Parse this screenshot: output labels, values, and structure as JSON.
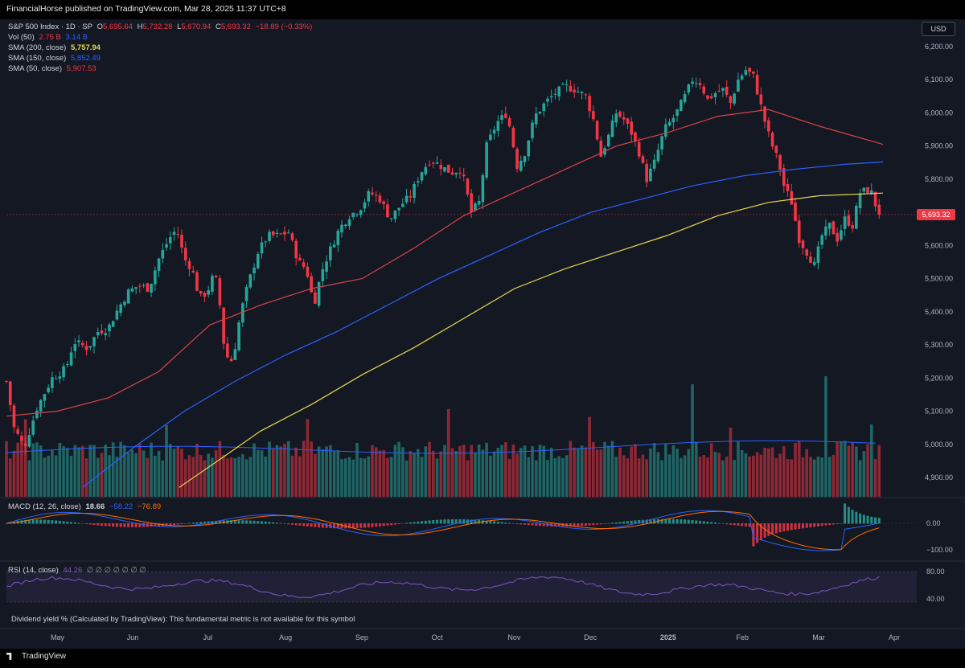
{
  "header": {
    "published": "FinancialHorse published on TradingView.com, Mar 28, 2025 11:37 UTC+8"
  },
  "legend": {
    "symbol": "S&P 500 Index · 1D · SP",
    "o_label": "O",
    "o": "5,695.64",
    "h_label": "H",
    "h": "5,732.28",
    "l_label": "L",
    "l": "5,670.94",
    "c_label": "C",
    "c": "5,693.32",
    "change": "−18.89 (−0.33%)",
    "vol_label": "Vol (50)",
    "vol_a": "2.75 B",
    "vol_b": "3.14 B",
    "sma200_label": "SMA (200, close)",
    "sma200": "5,757.94",
    "sma150_label": "SMA (150, close)",
    "sma150": "5,852.49",
    "sma50_label": "SMA (50, close)",
    "sma50": "5,907.53"
  },
  "currency": "USD",
  "last_price": "5,693.32",
  "macd": {
    "label": "MACD (12, 26, close)",
    "v1": "18.66",
    "v2": "−58.22",
    "v3": "−76.89"
  },
  "rsi": {
    "label": "RSI (14, close)",
    "v": "44.26",
    "extra": "∅ ∅ ∅ ∅ ∅ ∅ ∅"
  },
  "dividend_note": "Dividend yield % (Calculated by TradingView): This fundamental metric is not available for this symbol",
  "footer": {
    "brand": "TradingView"
  },
  "colors": {
    "up": "#26a69a",
    "down": "#f23645",
    "sma200": "#e6d84a",
    "sma150": "#2962ff",
    "sma50": "#d9434b",
    "macd": "#2962ff",
    "signal": "#ff6d00",
    "rsi": "#7e57c2"
  },
  "chart_data": {
    "type": "candlestick",
    "x_ticks": [
      "May",
      "Jun",
      "Jul",
      "Aug",
      "Sep",
      "Oct",
      "Nov",
      "Dec",
      "2025",
      "Feb",
      "Mar",
      "Apr"
    ],
    "y_ticks": [
      "6,200.00",
      "6,100.00",
      "6,000.00",
      "5,900.00",
      "5,800.00",
      "5,700.00",
      "5,600.00",
      "5,500.00",
      "5,400.00",
      "5,300.00",
      "5,200.00",
      "5,100.00",
      "5,000.00",
      "4,900.00"
    ],
    "ylim": [
      4870,
      6260
    ],
    "macd_ticks": [
      "0.00",
      "−100.00"
    ],
    "rsi_ticks": [
      "80.00",
      "40.00"
    ],
    "close_path": [
      [
        0,
        5190
      ],
      [
        6,
        5050
      ],
      [
        14,
        4990
      ],
      [
        24,
        5110
      ],
      [
        36,
        5200
      ],
      [
        47,
        5230
      ],
      [
        53,
        5310
      ],
      [
        64,
        5290
      ],
      [
        72,
        5340
      ],
      [
        80,
        5350
      ],
      [
        88,
        5410
      ],
      [
        96,
        5460
      ],
      [
        104,
        5480
      ],
      [
        112,
        5470
      ],
      [
        120,
        5560
      ],
      [
        128,
        5620
      ],
      [
        134,
        5650
      ],
      [
        140,
        5560
      ],
      [
        146,
        5530
      ],
      [
        152,
        5440
      ],
      [
        158,
        5460
      ],
      [
        164,
        5520
      ],
      [
        168,
        5420
      ],
      [
        172,
        5270
      ],
      [
        178,
        5250
      ],
      [
        184,
        5390
      ],
      [
        190,
        5480
      ],
      [
        198,
        5580
      ],
      [
        206,
        5630
      ],
      [
        214,
        5630
      ],
      [
        222,
        5640
      ],
      [
        230,
        5550
      ],
      [
        236,
        5530
      ],
      [
        242,
        5420
      ],
      [
        248,
        5520
      ],
      [
        254,
        5580
      ],
      [
        262,
        5650
      ],
      [
        270,
        5690
      ],
      [
        278,
        5710
      ],
      [
        286,
        5760
      ],
      [
        294,
        5740
      ],
      [
        302,
        5680
      ],
      [
        310,
        5720
      ],
      [
        318,
        5750
      ],
      [
        326,
        5820
      ],
      [
        334,
        5860
      ],
      [
        342,
        5840
      ],
      [
        350,
        5820
      ],
      [
        358,
        5830
      ],
      [
        366,
        5700
      ],
      [
        372,
        5730
      ],
      [
        378,
        5900
      ],
      [
        386,
        5970
      ],
      [
        394,
        6000
      ],
      [
        402,
        5840
      ],
      [
        408,
        5880
      ],
      [
        416,
        5990
      ],
      [
        424,
        6030
      ],
      [
        432,
        6060
      ],
      [
        440,
        6080
      ],
      [
        448,
        6070
      ],
      [
        456,
        6050
      ],
      [
        462,
        5980
      ],
      [
        468,
        5870
      ],
      [
        474,
        5930
      ],
      [
        480,
        6000
      ],
      [
        486,
        5980
      ],
      [
        492,
        5940
      ],
      [
        498,
        5880
      ],
      [
        504,
        5800
      ],
      [
        510,
        5850
      ],
      [
        518,
        5950
      ],
      [
        526,
        5990
      ],
      [
        534,
        6050
      ],
      [
        540,
        6100
      ],
      [
        546,
        6090
      ],
      [
        552,
        6040
      ],
      [
        558,
        6060
      ],
      [
        564,
        6070
      ],
      [
        570,
        6030
      ],
      [
        576,
        6100
      ],
      [
        582,
        6130
      ],
      [
        588,
        6110
      ],
      [
        594,
        6020
      ],
      [
        598,
        5960
      ],
      [
        602,
        5910
      ],
      [
        608,
        5850
      ],
      [
        612,
        5780
      ],
      [
        618,
        5730
      ],
      [
        624,
        5620
      ],
      [
        630,
        5580
      ],
      [
        636,
        5540
      ],
      [
        642,
        5630
      ],
      [
        648,
        5660
      ],
      [
        654,
        5620
      ],
      [
        660,
        5680
      ],
      [
        666,
        5660
      ],
      [
        672,
        5760
      ],
      [
        680,
        5770
      ],
      [
        686,
        5700
      ],
      [
        690,
        5693
      ]
    ],
    "sma50": [
      [
        0,
        5085
      ],
      [
        40,
        5100
      ],
      [
        80,
        5140
      ],
      [
        120,
        5220
      ],
      [
        160,
        5360
      ],
      [
        200,
        5420
      ],
      [
        240,
        5470
      ],
      [
        280,
        5500
      ],
      [
        320,
        5590
      ],
      [
        360,
        5690
      ],
      [
        400,
        5760
      ],
      [
        440,
        5830
      ],
      [
        480,
        5900
      ],
      [
        520,
        5940
      ],
      [
        560,
        5990
      ],
      [
        600,
        6010
      ],
      [
        640,
        5960
      ],
      [
        690,
        5905
      ]
    ],
    "sma150": [
      [
        60,
        4870
      ],
      [
        100,
        4990
      ],
      [
        140,
        5100
      ],
      [
        180,
        5190
      ],
      [
        220,
        5270
      ],
      [
        260,
        5340
      ],
      [
        300,
        5420
      ],
      [
        340,
        5500
      ],
      [
        380,
        5570
      ],
      [
        420,
        5640
      ],
      [
        460,
        5700
      ],
      [
        500,
        5740
      ],
      [
        540,
        5780
      ],
      [
        580,
        5810
      ],
      [
        620,
        5830
      ],
      [
        660,
        5845
      ],
      [
        690,
        5852
      ]
    ],
    "sma200": [
      [
        136,
        4870
      ],
      [
        170,
        4960
      ],
      [
        200,
        5040
      ],
      [
        240,
        5120
      ],
      [
        280,
        5210
      ],
      [
        320,
        5290
      ],
      [
        360,
        5380
      ],
      [
        400,
        5470
      ],
      [
        440,
        5530
      ],
      [
        480,
        5580
      ],
      [
        520,
        5630
      ],
      [
        560,
        5690
      ],
      [
        600,
        5730
      ],
      [
        640,
        5750
      ],
      [
        690,
        5758
      ]
    ],
    "volume_ma_level": 0.31
  }
}
